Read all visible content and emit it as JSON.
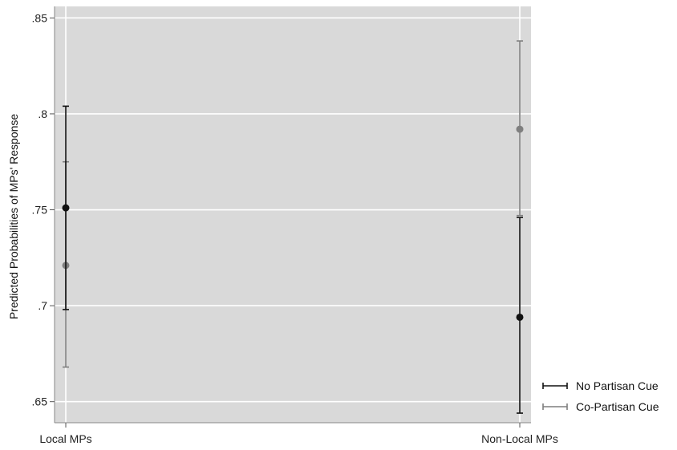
{
  "chart_data": {
    "type": "scatter",
    "title": "",
    "xlabel": "",
    "ylabel": "Predicted Probabilities of MPs' Response",
    "categories": [
      "Local MPs",
      "Non-Local MPs"
    ],
    "y_ticks": [
      0.85,
      0.8,
      0.75,
      0.7,
      0.65
    ],
    "y_tick_labels": [
      ".85",
      ".8",
      ".75",
      ".7",
      ".65"
    ],
    "ylim": [
      0.639,
      0.856
    ],
    "grid": true,
    "legend_position": "bottom-right",
    "series": [
      {
        "name": "No Partisan Cue",
        "color": "#111111",
        "points": [
          {
            "category": "Local MPs",
            "estimate": 0.751,
            "lower": 0.698,
            "upper": 0.804
          },
          {
            "category": "Non-Local MPs",
            "estimate": 0.694,
            "lower": 0.644,
            "upper": 0.746
          }
        ]
      },
      {
        "name": "Co-Partisan Cue",
        "color": "#7f7f7f",
        "points": [
          {
            "category": "Local MPs",
            "estimate": 0.721,
            "lower": 0.668,
            "upper": 0.775
          },
          {
            "category": "Non-Local MPs",
            "estimate": 0.792,
            "lower": 0.747,
            "upper": 0.838
          }
        ]
      }
    ],
    "plot_background": "#d9d9d9",
    "grid_color": "#ffffff"
  }
}
